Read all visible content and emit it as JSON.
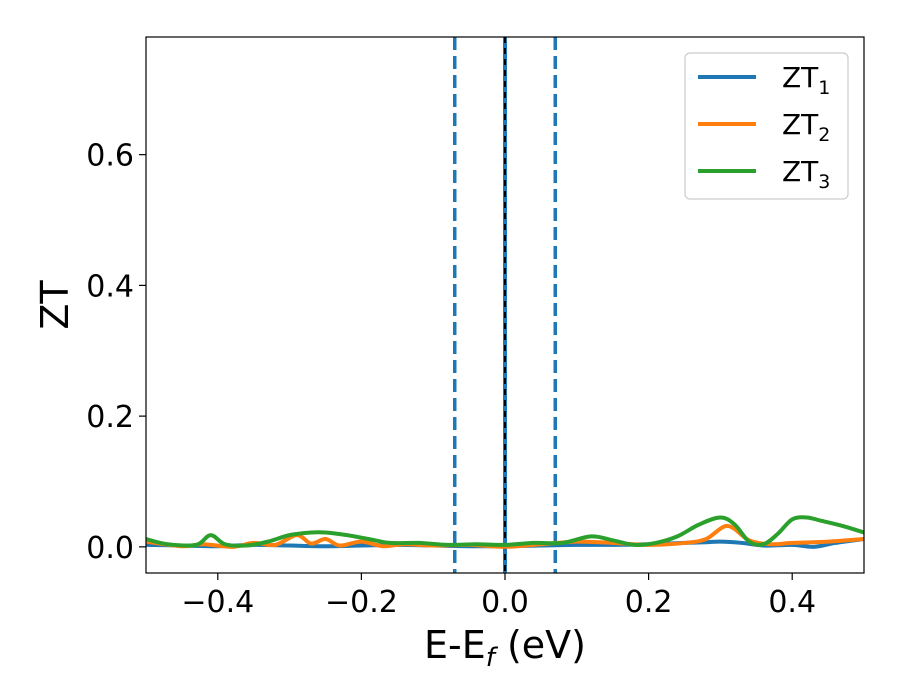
{
  "chart_data": {
    "type": "line",
    "xlabel": "E-E",
    "xlabel_sub": "f",
    "xlabel_unit": " (eV)",
    "ylabel": "ZT",
    "xlim": [
      -0.5,
      0.5
    ],
    "ylim": [
      -0.04,
      0.78
    ],
    "grid": false,
    "legend_position": "top-right",
    "x_ticks": [
      -0.4,
      -0.2,
      0.0,
      0.2,
      0.4
    ],
    "x_tick_labels": [
      "−0.4",
      "−0.2",
      "0.0",
      "0.2",
      "0.4"
    ],
    "y_ticks": [
      0.0,
      0.2,
      0.4,
      0.6
    ],
    "y_tick_labels": [
      "0.0",
      "0.2",
      "0.4",
      "0.6"
    ],
    "vlines": [
      {
        "x": -0.07,
        "style": "dashed",
        "color": "#1f77b4"
      },
      {
        "x": 0.0,
        "style": "solid",
        "color": "#1f77b4"
      },
      {
        "x": 0.0,
        "style": "dashed",
        "color": "#000000"
      },
      {
        "x": 0.07,
        "style": "dashed",
        "color": "#1f77b4"
      }
    ],
    "series": [
      {
        "name": "ZT",
        "name_sub": "1",
        "color": "#1f77b4",
        "x": [
          -0.5,
          -0.45,
          -0.4,
          -0.35,
          -0.3,
          -0.25,
          -0.2,
          -0.15,
          -0.1,
          -0.05,
          0.0,
          0.05,
          0.1,
          0.15,
          0.2,
          0.25,
          0.28,
          0.3,
          0.33,
          0.36,
          0.4,
          0.43,
          0.46,
          0.5
        ],
        "y": [
          0.003,
          0.002,
          0.001,
          0.003,
          0.002,
          0.001,
          0.002,
          0.003,
          0.002,
          0.001,
          0.001,
          0.002,
          0.003,
          0.003,
          0.004,
          0.006,
          0.007,
          0.008,
          0.006,
          0.002,
          0.003,
          0.0,
          0.006,
          0.012
        ]
      },
      {
        "name": "ZT",
        "name_sub": "2",
        "color": "#ff7f0e",
        "x": [
          -0.5,
          -0.45,
          -0.42,
          -0.38,
          -0.35,
          -0.32,
          -0.29,
          -0.27,
          -0.25,
          -0.23,
          -0.2,
          -0.17,
          -0.14,
          -0.1,
          -0.05,
          0.0,
          0.05,
          0.1,
          0.15,
          0.2,
          0.25,
          0.28,
          0.31,
          0.34,
          0.37,
          0.4,
          0.45,
          0.5
        ],
        "y": [
          0.008,
          0.001,
          0.004,
          0.0,
          0.006,
          0.003,
          0.018,
          0.005,
          0.012,
          0.002,
          0.008,
          0.001,
          0.004,
          0.002,
          0.003,
          0.0,
          0.004,
          0.008,
          0.006,
          0.003,
          0.006,
          0.012,
          0.032,
          0.01,
          0.004,
          0.006,
          0.008,
          0.012
        ]
      },
      {
        "name": "ZT",
        "name_sub": "3",
        "color": "#2ca02c",
        "x": [
          -0.5,
          -0.47,
          -0.43,
          -0.41,
          -0.39,
          -0.36,
          -0.33,
          -0.3,
          -0.27,
          -0.25,
          -0.22,
          -0.19,
          -0.16,
          -0.12,
          -0.08,
          -0.04,
          0.0,
          0.04,
          0.08,
          0.12,
          0.15,
          0.18,
          0.21,
          0.24,
          0.27,
          0.3,
          0.32,
          0.34,
          0.36,
          0.38,
          0.4,
          0.42,
          0.44,
          0.47,
          0.5
        ],
        "y": [
          0.012,
          0.004,
          0.003,
          0.018,
          0.004,
          0.002,
          0.008,
          0.018,
          0.022,
          0.022,
          0.018,
          0.012,
          0.006,
          0.006,
          0.003,
          0.004,
          0.003,
          0.006,
          0.006,
          0.016,
          0.01,
          0.003,
          0.006,
          0.016,
          0.034,
          0.045,
          0.034,
          0.008,
          0.004,
          0.02,
          0.042,
          0.045,
          0.04,
          0.032,
          0.022
        ]
      }
    ]
  }
}
